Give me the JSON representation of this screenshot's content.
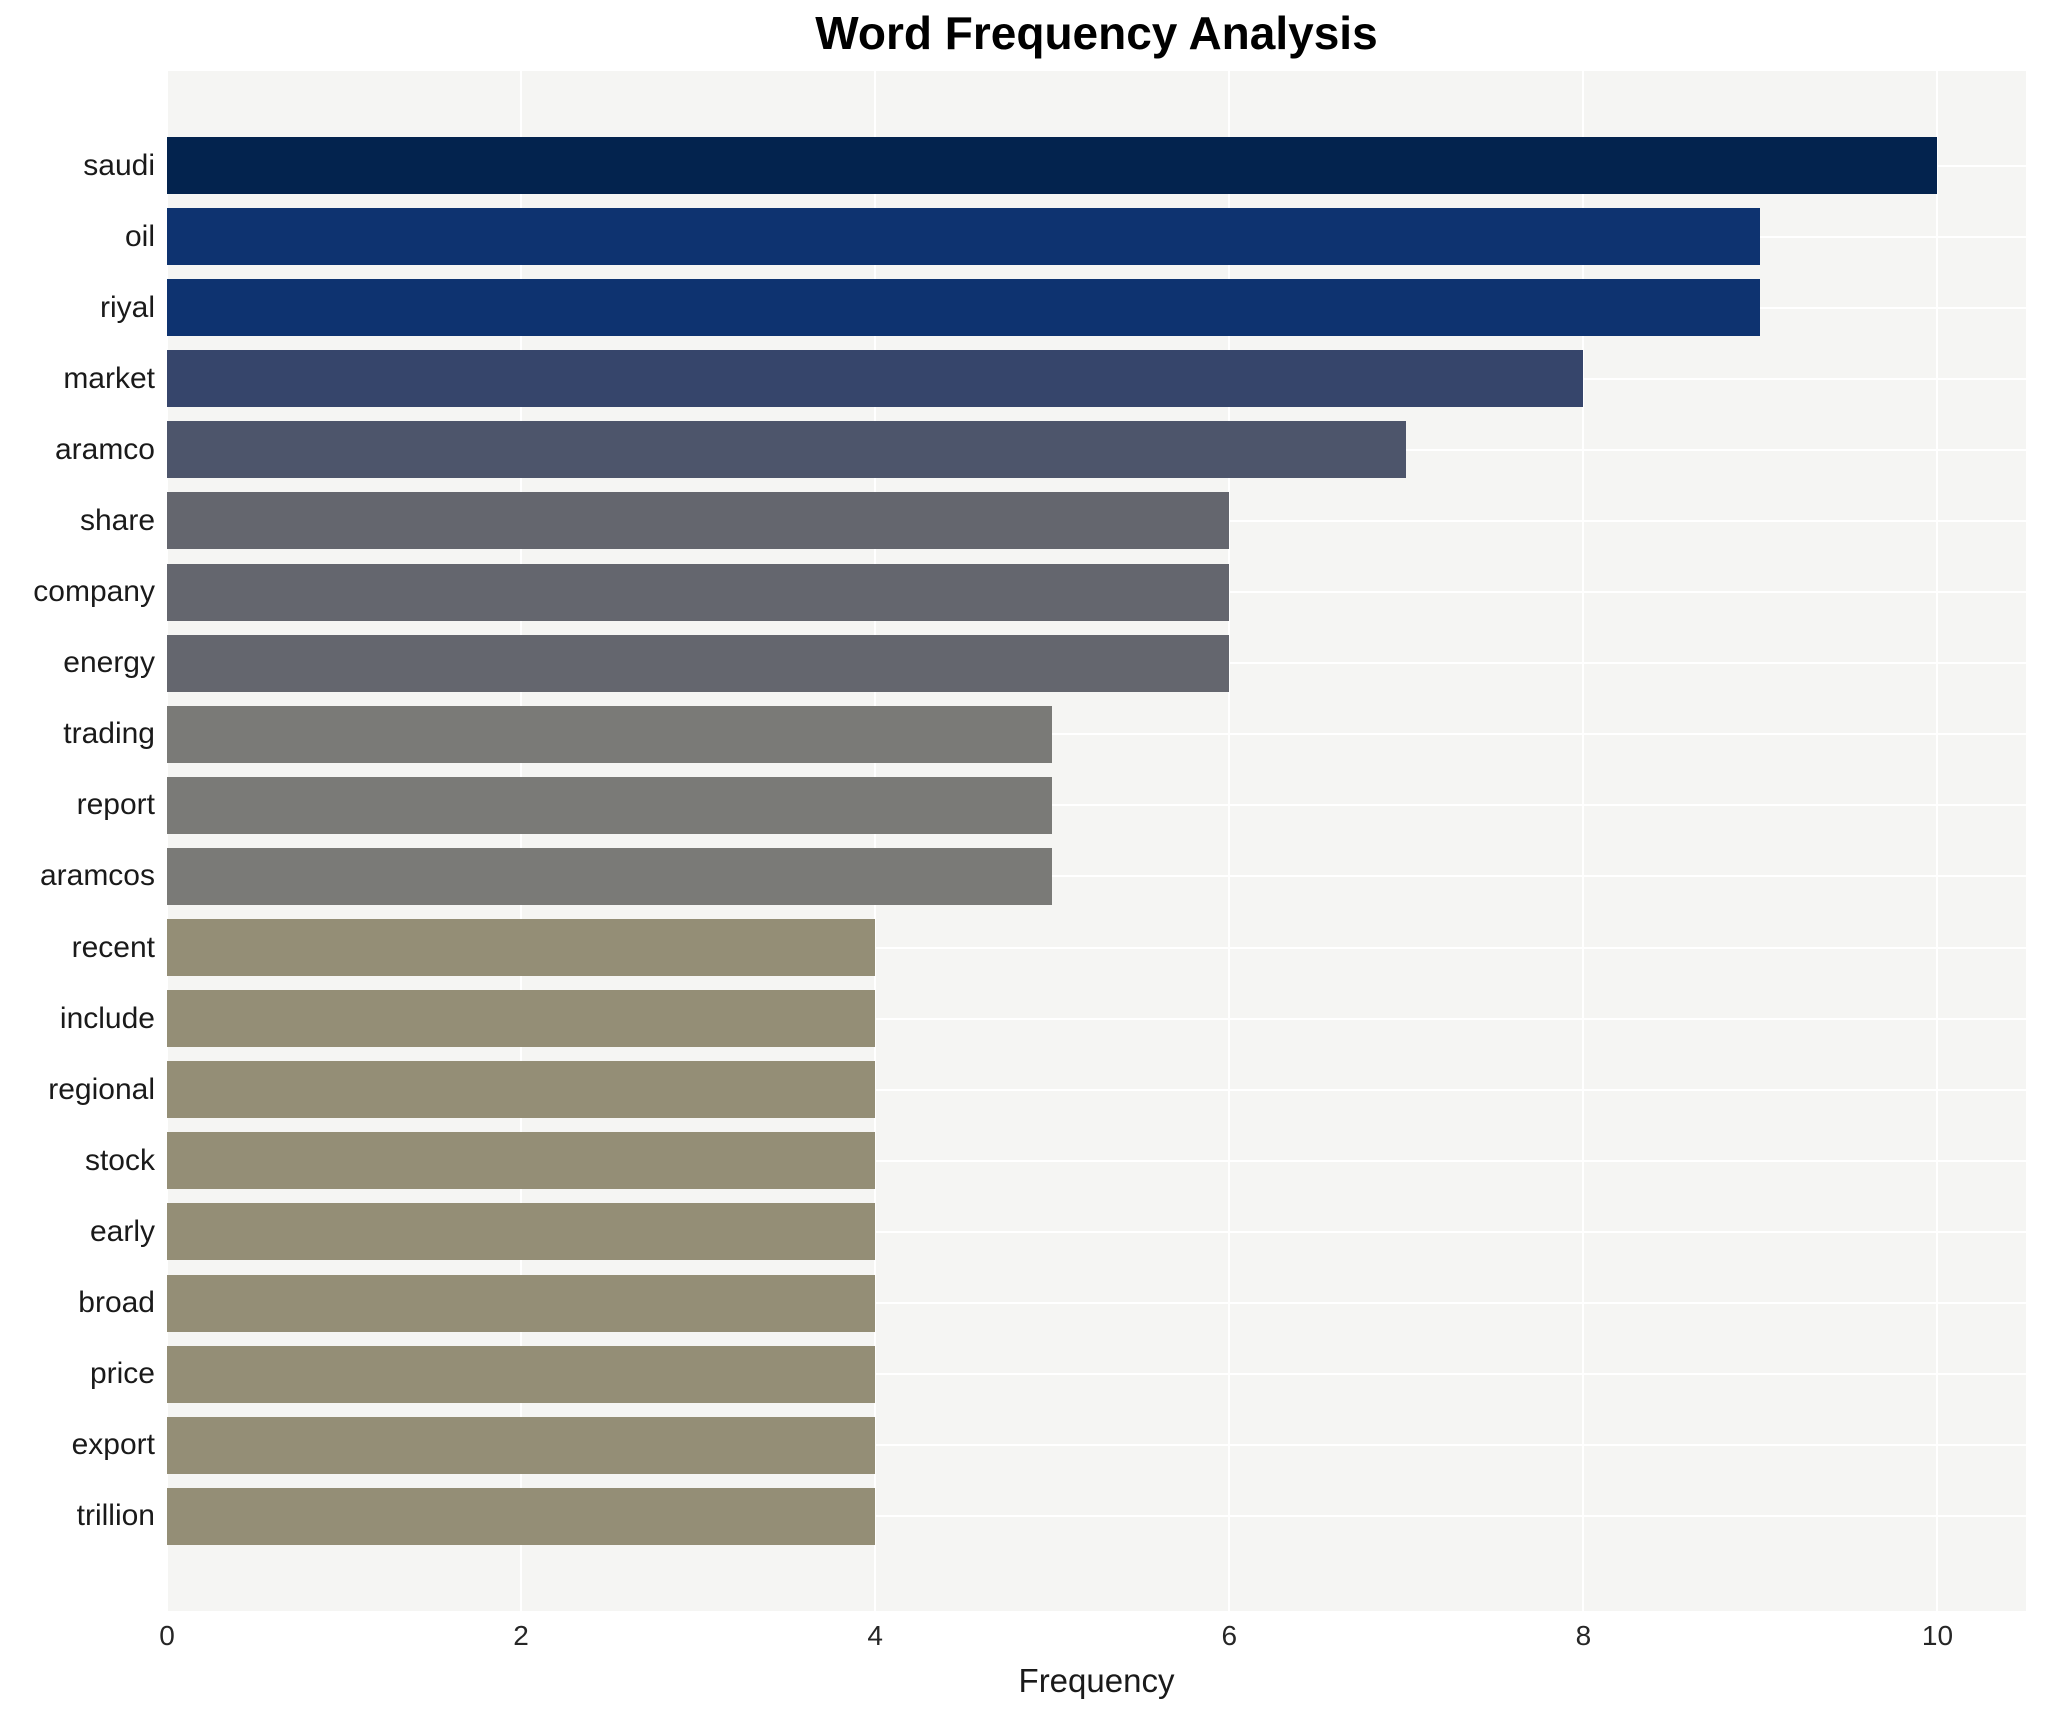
{
  "page": {
    "background": "#ffffff"
  },
  "chart_data": {
    "type": "bar",
    "orientation": "horizontal",
    "title": "Word Frequency Analysis",
    "xlabel": "Frequency",
    "ylabel": "",
    "categories": [
      "saudi",
      "oil",
      "riyal",
      "market",
      "aramco",
      "share",
      "company",
      "energy",
      "trading",
      "report",
      "aramcos",
      "recent",
      "include",
      "regional",
      "stock",
      "early",
      "broad",
      "price",
      "export",
      "trillion"
    ],
    "values": [
      10,
      9,
      9,
      8,
      7,
      6,
      6,
      6,
      5,
      5,
      5,
      4,
      4,
      4,
      4,
      4,
      4,
      4,
      4,
      4
    ],
    "bar_colors": [
      "#03234e",
      "#0e3370",
      "#0e3370",
      "#36456b",
      "#4d556b",
      "#64666e",
      "#64666e",
      "#64666e",
      "#7a7a77",
      "#7a7a77",
      "#7a7a77",
      "#948e76",
      "#948e76",
      "#948e76",
      "#948e76",
      "#948e76",
      "#948e76",
      "#948e76",
      "#948e76",
      "#948e76"
    ],
    "xticks": [
      0,
      2,
      4,
      6,
      8,
      10
    ],
    "xlim": [
      0,
      10.5
    ],
    "grid": true,
    "legend": false,
    "plot_background": "#f5f5f3",
    "grid_color": "#ffffff",
    "text_color": "#1a1a1a",
    "tick_color": "#262626"
  }
}
